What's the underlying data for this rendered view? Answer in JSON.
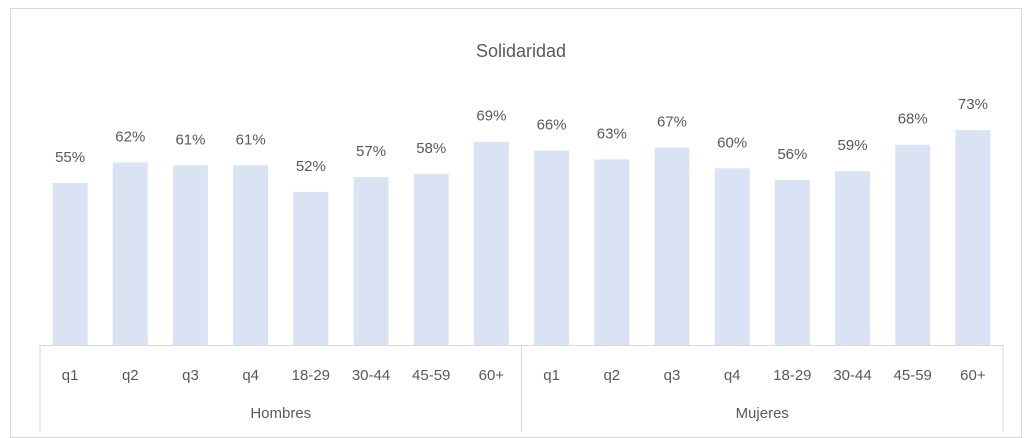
{
  "chart_data": {
    "type": "bar",
    "title": "Solidaridad",
    "categories": [
      "q1",
      "q2",
      "q3",
      "q4",
      "18-29",
      "30-44",
      "45-59",
      "60+",
      "q1",
      "q2",
      "q3",
      "q4",
      "18-29",
      "30-44",
      "45-59",
      "60+"
    ],
    "groups": [
      "Hombres",
      "Mujeres"
    ],
    "values": [
      55,
      62,
      61,
      61,
      52,
      57,
      58,
      69,
      66,
      63,
      67,
      60,
      56,
      59,
      68,
      73
    ],
    "value_labels": [
      "55%",
      "62%",
      "61%",
      "61%",
      "52%",
      "57%",
      "58%",
      "69%",
      "66%",
      "63%",
      "67%",
      "60%",
      "56%",
      "59%",
      "68%",
      "73%"
    ],
    "color": "#dae3f3"
  }
}
